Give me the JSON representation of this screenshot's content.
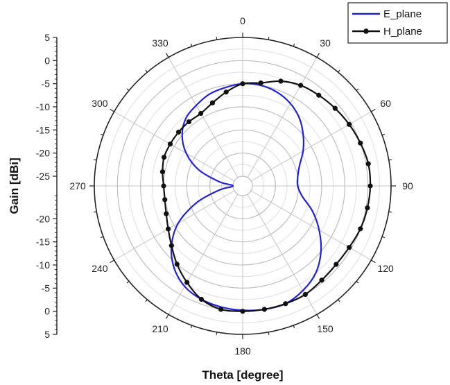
{
  "chart_data": {
    "type": "line",
    "subtype": "polar",
    "xlabel": "Theta [degree]",
    "ylabel": "Gain [dBi]",
    "angle_ticks": [
      0,
      30,
      60,
      90,
      120,
      150,
      180,
      210,
      240,
      270,
      300,
      330
    ],
    "radial_range": [
      -25,
      5
    ],
    "radial_ticks": [
      5,
      0,
      -5,
      -10,
      -15,
      -20,
      -25,
      -20,
      -15,
      -10,
      -5,
      0,
      5
    ],
    "grid": true,
    "legend_position": "top-right",
    "series": [
      {
        "name": "E_plane",
        "color": "#2222cc",
        "markers": false,
        "theta": [
          0,
          10,
          20,
          30,
          40,
          50,
          60,
          70,
          80,
          90,
          100,
          110,
          120,
          130,
          140,
          150,
          160,
          170,
          180,
          190,
          200,
          210,
          220,
          230,
          240,
          250,
          260,
          270,
          280,
          290,
          300,
          310,
          320,
          330,
          340,
          350
        ],
        "values": [
          -5,
          -5,
          -5.5,
          -6.5,
          -8,
          -10,
          -12,
          -14,
          -15,
          -15.2,
          -14,
          -11,
          -8,
          -5,
          -2.5,
          -1,
          0,
          0,
          -0.2,
          -0.5,
          -1,
          -2,
          -4,
          -7,
          -11,
          -16.5,
          -22,
          -25,
          -22,
          -17,
          -13,
          -10,
          -8,
          -7,
          -6,
          -5.5
        ],
        "ylim": [
          -25,
          5
        ]
      },
      {
        "name": "H_plane",
        "color": "#111111",
        "markers": true,
        "theta": [
          0,
          10,
          20,
          30,
          40,
          50,
          60,
          70,
          80,
          90,
          100,
          110,
          120,
          130,
          140,
          150,
          160,
          170,
          180,
          190,
          200,
          210,
          220,
          230,
          240,
          250,
          260,
          270,
          280,
          290,
          300,
          310,
          320,
          330,
          340,
          350
        ],
        "values": [
          -5,
          -4.5,
          -3,
          -2,
          -1.5,
          -1,
          -0.5,
          0,
          0.5,
          0.5,
          0.3,
          0,
          -0.5,
          -0.7,
          -0.5,
          0,
          0,
          0,
          0,
          0,
          -1,
          -3,
          -5,
          -7,
          -8.5,
          -9.5,
          -10,
          -10,
          -9.5,
          -9,
          -9,
          -9,
          -9,
          -9,
          -8,
          -6.5
        ],
        "ylim": [
          -25,
          5
        ]
      }
    ]
  }
}
